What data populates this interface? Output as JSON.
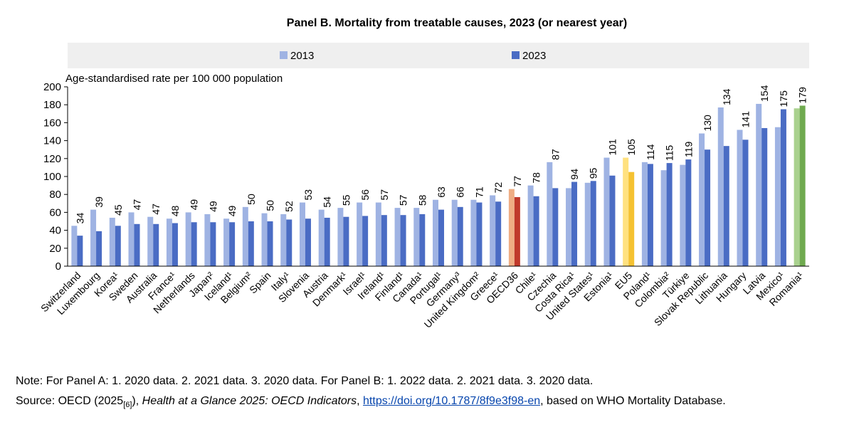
{
  "chart_data": {
    "type": "bar",
    "title": "Panel B. Mortality from treatable causes, 2023 (or nearest year)",
    "ylabel": "Age-standardised rate per 100 000 population",
    "xlabel": "",
    "ylim": [
      0,
      200
    ],
    "yticks": [
      0,
      20,
      40,
      60,
      80,
      100,
      120,
      140,
      160,
      180,
      200
    ],
    "legend_position": "top",
    "categories": [
      "Switzerland",
      "Luxembourg",
      "Korea¹",
      "Sweden",
      "Australia",
      "France¹",
      "Netherlands",
      "Japan²",
      "Iceland¹",
      "Belgium²",
      "Spain",
      "Italy¹",
      "Slovenia",
      "Austria",
      "Denmark¹",
      "Israel¹",
      "Ireland¹",
      "Finland¹",
      "Canada¹",
      "Portugal¹",
      "Germany³",
      "United Kingdom²",
      "Greece¹",
      "OECD36",
      "Chile¹",
      "Czechia",
      "Costa Rica¹",
      "United States¹",
      "Estonia¹",
      "EU5",
      "Poland¹",
      "Colombia²",
      "Türkiye",
      "Slovak Republic",
      "Lithuania",
      "Hungary",
      "Latvia",
      "Mexico¹",
      "Romania¹"
    ],
    "series": [
      {
        "name": "2013",
        "values": [
          45,
          63,
          54,
          60,
          55,
          53,
          60,
          58,
          53,
          66,
          59,
          58,
          71,
          63,
          65,
          71,
          71,
          65,
          65,
          74,
          74,
          74,
          79,
          86,
          90,
          116,
          87,
          93,
          121,
          121,
          116,
          107,
          113,
          148,
          177,
          152,
          181,
          155,
          176
        ]
      },
      {
        "name": "2023",
        "values": [
          34,
          39,
          45,
          47,
          47,
          48,
          49,
          49,
          49,
          50,
          50,
          52,
          53,
          54,
          55,
          56,
          57,
          57,
          58,
          63,
          66,
          71,
          72,
          77,
          78,
          87,
          94,
          95,
          101,
          105,
          114,
          115,
          119,
          130,
          134,
          141,
          154,
          175,
          179
        ]
      }
    ],
    "data_labels": [
      "34",
      "39",
      "45",
      "47",
      "47",
      "48",
      "49",
      "49",
      "49",
      "50",
      "50",
      "52",
      "53",
      "54",
      "55",
      "56",
      "57",
      "57",
      "58",
      "63",
      "66",
      "71",
      "72",
      "77",
      "78",
      "87",
      "94",
      "95",
      "101",
      "105",
      "114",
      "115",
      "119",
      "130",
      "134",
      "141",
      "154",
      "175",
      "179"
    ],
    "highlights": {
      "OECD36": {
        "2013": "#efad84",
        "2023": "#c0392b"
      },
      "EU5": {
        "2013": "#ffe17f",
        "2023": "#f5c231"
      },
      "Romania¹": {
        "2013": "#a9d18e",
        "2023": "#6faa4f"
      }
    },
    "colors": {
      "2013": "#9fb3e3",
      "2023": "#4a6cc4",
      "legend_band": "#efefef"
    }
  },
  "notes": {
    "line1": "Note: For Panel A: 1. 2020 data. 2. 2021 data. 3. 2020 data. For Panel B: 1. 2022 data. 2. 2021 data. 3. 2020 data.",
    "source_prefix": "Source: OECD (2025",
    "source_ref": "[6]",
    "source_mid1": "), ",
    "source_title": "Health at a Glance 2025: OECD Indicators",
    "source_mid2": ", ",
    "source_link": "https://doi.org/10.1787/8f9e3f98-en",
    "source_suffix": ", based on WHO Mortality Database."
  }
}
